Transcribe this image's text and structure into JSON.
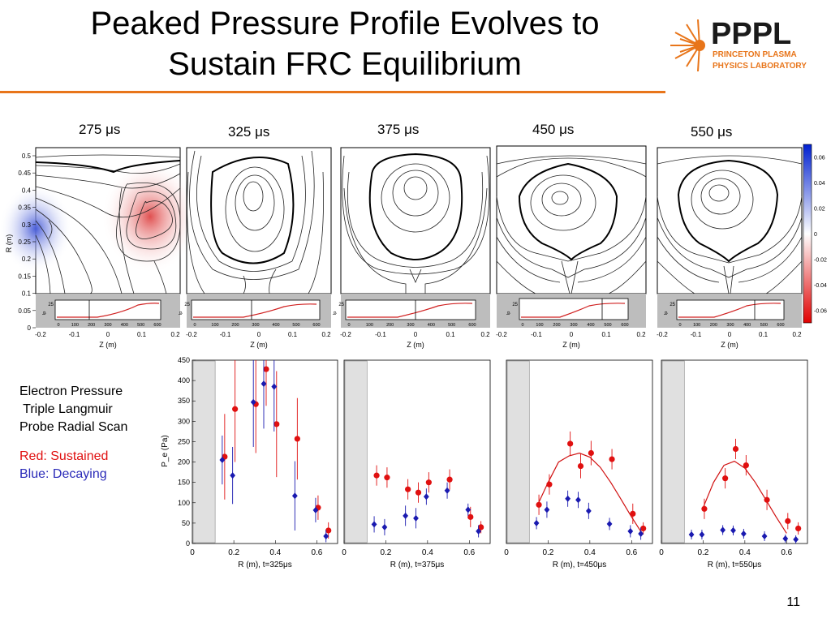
{
  "slide": {
    "title_line1": "Peaked Pressure Profile Evolves to",
    "title_line2": "Sustain FRC Equilibrium",
    "page_number": "11",
    "accent_color": "#e8751a"
  },
  "logo": {
    "text": "PPPL",
    "subtitle_line1": "PRINCETON PLASMA",
    "subtitle_line2": "PHYSICS LABORATORY",
    "color": "#e8751a"
  },
  "time_labels": [
    "275 μs",
    "325 μs",
    "375 μs",
    "450 μs",
    "550 μs"
  ],
  "contour_plots": {
    "ylabel": "R (m)",
    "xlabel": "Z (m)",
    "y_ticks": [
      "0.5",
      "0.45",
      "0.4",
      "0.35",
      "0.3",
      "0.25",
      "0.2",
      "0.15",
      "0.1",
      "0.05",
      "0"
    ],
    "x_ticks": [
      "-0.2",
      "-0.1",
      "0",
      "0.1",
      "0.2"
    ],
    "inset_tick_25": "25",
    "inset_ylabel": "Ip",
    "inset_x_ticks": [
      "0",
      "100",
      "200",
      "300",
      "400",
      "500",
      "600"
    ],
    "colorbar_ticks": [
      "0.06",
      "0.04",
      "0.02",
      "0",
      "-0.02",
      "-0.04",
      "-0.06"
    ],
    "colorbar_range": [
      -0.07,
      0.07
    ]
  },
  "legend": {
    "line1": "Electron Pressure",
    "line2": " Triple Langmuir",
    "line3": "Probe Radial Scan",
    "red_label": "Red: Sustained",
    "blue_label": "Blue: Decaying",
    "red_color": "#e01010",
    "blue_color": "#1a1ab0"
  },
  "chart_data": [
    {
      "type": "scatter",
      "ylabel": "P_e (Pa)",
      "xlabel": "R (m), t=325μs",
      "xlim": [
        0,
        0.7
      ],
      "ylim": [
        0,
        450
      ],
      "x_ticks": [
        "0",
        "0.2",
        "0.4",
        "0.6"
      ],
      "y_ticks": [
        "0",
        "50",
        "100",
        "150",
        "200",
        "250",
        "300",
        "350",
        "400",
        "450"
      ],
      "series": [
        {
          "color": "red",
          "points": [
            [
              0.15,
              213,
              105
            ],
            [
              0.2,
              330,
              130
            ],
            [
              0.3,
              342,
              120
            ],
            [
              0.35,
              428,
              90
            ],
            [
              0.4,
              293,
              130
            ],
            [
              0.5,
              257,
              100
            ],
            [
              0.6,
              88,
              30
            ],
            [
              0.65,
              32,
              20
            ]
          ]
        },
        {
          "color": "blue",
          "points": [
            [
              0.15,
              205,
              60
            ],
            [
              0.2,
              167,
              70
            ],
            [
              0.3,
              347,
              110
            ],
            [
              0.35,
              392,
              110
            ],
            [
              0.4,
              385,
              110
            ],
            [
              0.5,
              117,
              85
            ],
            [
              0.6,
              82,
              30
            ],
            [
              0.65,
              18,
              15
            ]
          ]
        }
      ]
    },
    {
      "type": "scatter",
      "xlabel": "R (m), t=375μs",
      "xlim": [
        0,
        0.7
      ],
      "ylim": [
        0,
        450
      ],
      "x_ticks": [
        "0",
        "0.2",
        "0.4",
        "0.6"
      ],
      "series": [
        {
          "color": "red",
          "points": [
            [
              0.15,
              167,
              25
            ],
            [
              0.2,
              162,
              25
            ],
            [
              0.3,
              133,
              25
            ],
            [
              0.35,
              125,
              25
            ],
            [
              0.4,
              150,
              25
            ],
            [
              0.5,
              157,
              25
            ],
            [
              0.6,
              65,
              25
            ],
            [
              0.65,
              40,
              15
            ]
          ]
        },
        {
          "color": "blue",
          "points": [
            [
              0.15,
              47,
              20
            ],
            [
              0.2,
              40,
              20
            ],
            [
              0.3,
              68,
              25
            ],
            [
              0.35,
              62,
              25
            ],
            [
              0.4,
              115,
              20
            ],
            [
              0.5,
              130,
              20
            ],
            [
              0.6,
              83,
              15
            ],
            [
              0.65,
              30,
              15
            ]
          ]
        }
      ]
    },
    {
      "type": "scatter",
      "xlabel": "R (m), t=450μs",
      "xlim": [
        0,
        0.7
      ],
      "ylim": [
        0,
        450
      ],
      "x_ticks": [
        "0",
        "0.2",
        "0.4",
        "0.6"
      ],
      "fit": {
        "color": "red",
        "x": [
          0.15,
          0.2,
          0.25,
          0.3,
          0.35,
          0.4,
          0.45,
          0.5,
          0.55,
          0.6,
          0.65
        ],
        "y": [
          95,
          150,
          200,
          215,
          222,
          212,
          187,
          150,
          108,
          65,
          25
        ]
      },
      "series": [
        {
          "color": "red",
          "points": [
            [
              0.15,
              95,
              25
            ],
            [
              0.2,
              145,
              25
            ],
            [
              0.3,
              245,
              30
            ],
            [
              0.35,
              190,
              30
            ],
            [
              0.4,
              222,
              30
            ],
            [
              0.5,
              207,
              25
            ],
            [
              0.6,
              73,
              25
            ],
            [
              0.65,
              37,
              15
            ]
          ]
        },
        {
          "color": "blue",
          "points": [
            [
              0.15,
              50,
              15
            ],
            [
              0.2,
              83,
              20
            ],
            [
              0.3,
              110,
              20
            ],
            [
              0.35,
              107,
              20
            ],
            [
              0.4,
              80,
              20
            ],
            [
              0.5,
              48,
              15
            ],
            [
              0.6,
              30,
              15
            ],
            [
              0.65,
              24,
              15
            ]
          ]
        }
      ]
    },
    {
      "type": "scatter",
      "xlabel": "R (m), t=550μs",
      "xlim": [
        0,
        0.7
      ],
      "ylim": [
        0,
        450
      ],
      "x_ticks": [
        "0",
        "0.2",
        "0.4",
        "0.6"
      ],
      "fit": {
        "color": "red",
        "x": [
          0.2,
          0.25,
          0.3,
          0.35,
          0.4,
          0.45,
          0.5,
          0.55,
          0.6
        ],
        "y": [
          88,
          150,
          192,
          202,
          185,
          150,
          108,
          65,
          25
        ]
      },
      "series": [
        {
          "color": "red",
          "points": [
            [
              0.2,
              85,
              25
            ],
            [
              0.3,
              160,
              25
            ],
            [
              0.35,
              232,
              25
            ],
            [
              0.4,
              192,
              25
            ],
            [
              0.5,
              107,
              25
            ],
            [
              0.6,
              55,
              20
            ],
            [
              0.65,
              37,
              15
            ]
          ]
        },
        {
          "color": "blue",
          "points": [
            [
              0.15,
              22,
              12
            ],
            [
              0.2,
              22,
              12
            ],
            [
              0.3,
              33,
              12
            ],
            [
              0.35,
              32,
              12
            ],
            [
              0.4,
              24,
              12
            ],
            [
              0.5,
              18,
              12
            ],
            [
              0.6,
              12,
              10
            ],
            [
              0.65,
              10,
              10
            ]
          ]
        }
      ]
    }
  ]
}
